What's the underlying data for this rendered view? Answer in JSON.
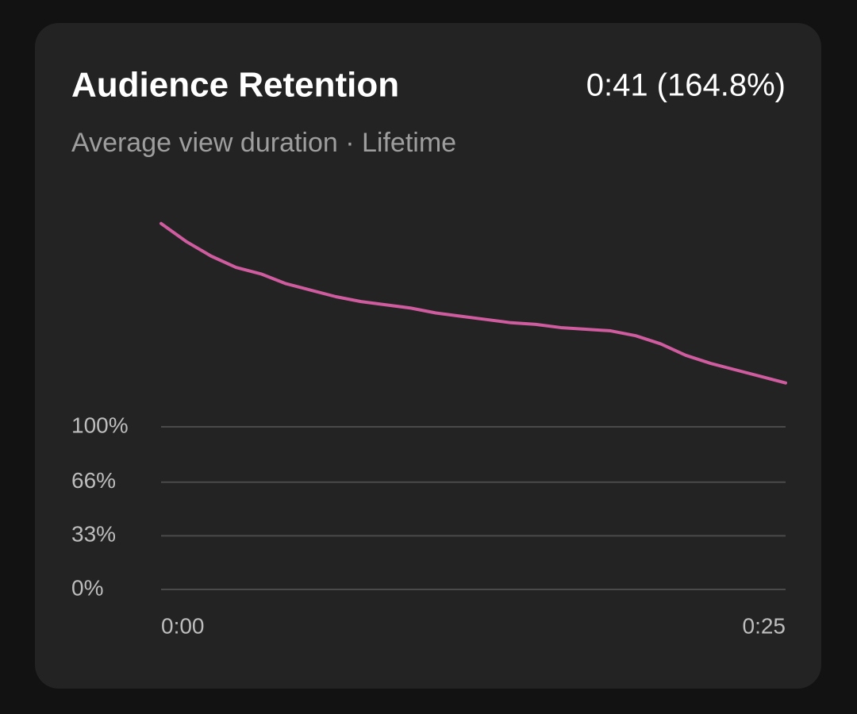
{
  "chart_data": {
    "type": "line",
    "title": "Audience Retention",
    "subtitle": "Average view duration · Lifetime",
    "annotation": "0:41 (164.8%)",
    "x": [
      0,
      1,
      2,
      3,
      4,
      5,
      6,
      7,
      8,
      9,
      10,
      11,
      12,
      13,
      14,
      15,
      16,
      17,
      18,
      19,
      20,
      21,
      22,
      23,
      24,
      25
    ],
    "values": [
      225,
      214,
      205,
      198,
      194,
      188,
      184,
      180,
      177,
      175,
      173,
      170,
      168,
      166,
      164,
      163,
      161,
      160,
      159,
      156,
      151,
      144,
      139,
      135,
      131,
      127
    ],
    "color": "#d05ca0",
    "xlim": [
      0,
      25
    ],
    "xticks": [
      {
        "value": 0,
        "label": "0:00"
      },
      {
        "value": 25,
        "label": "0:25"
      }
    ],
    "ylim": [
      0,
      230
    ],
    "yticks": [
      {
        "value": 0,
        "label": "0%"
      },
      {
        "value": 33,
        "label": "33%"
      },
      {
        "value": 66,
        "label": "66%"
      },
      {
        "value": 100,
        "label": "100%"
      }
    ],
    "grid": true
  }
}
